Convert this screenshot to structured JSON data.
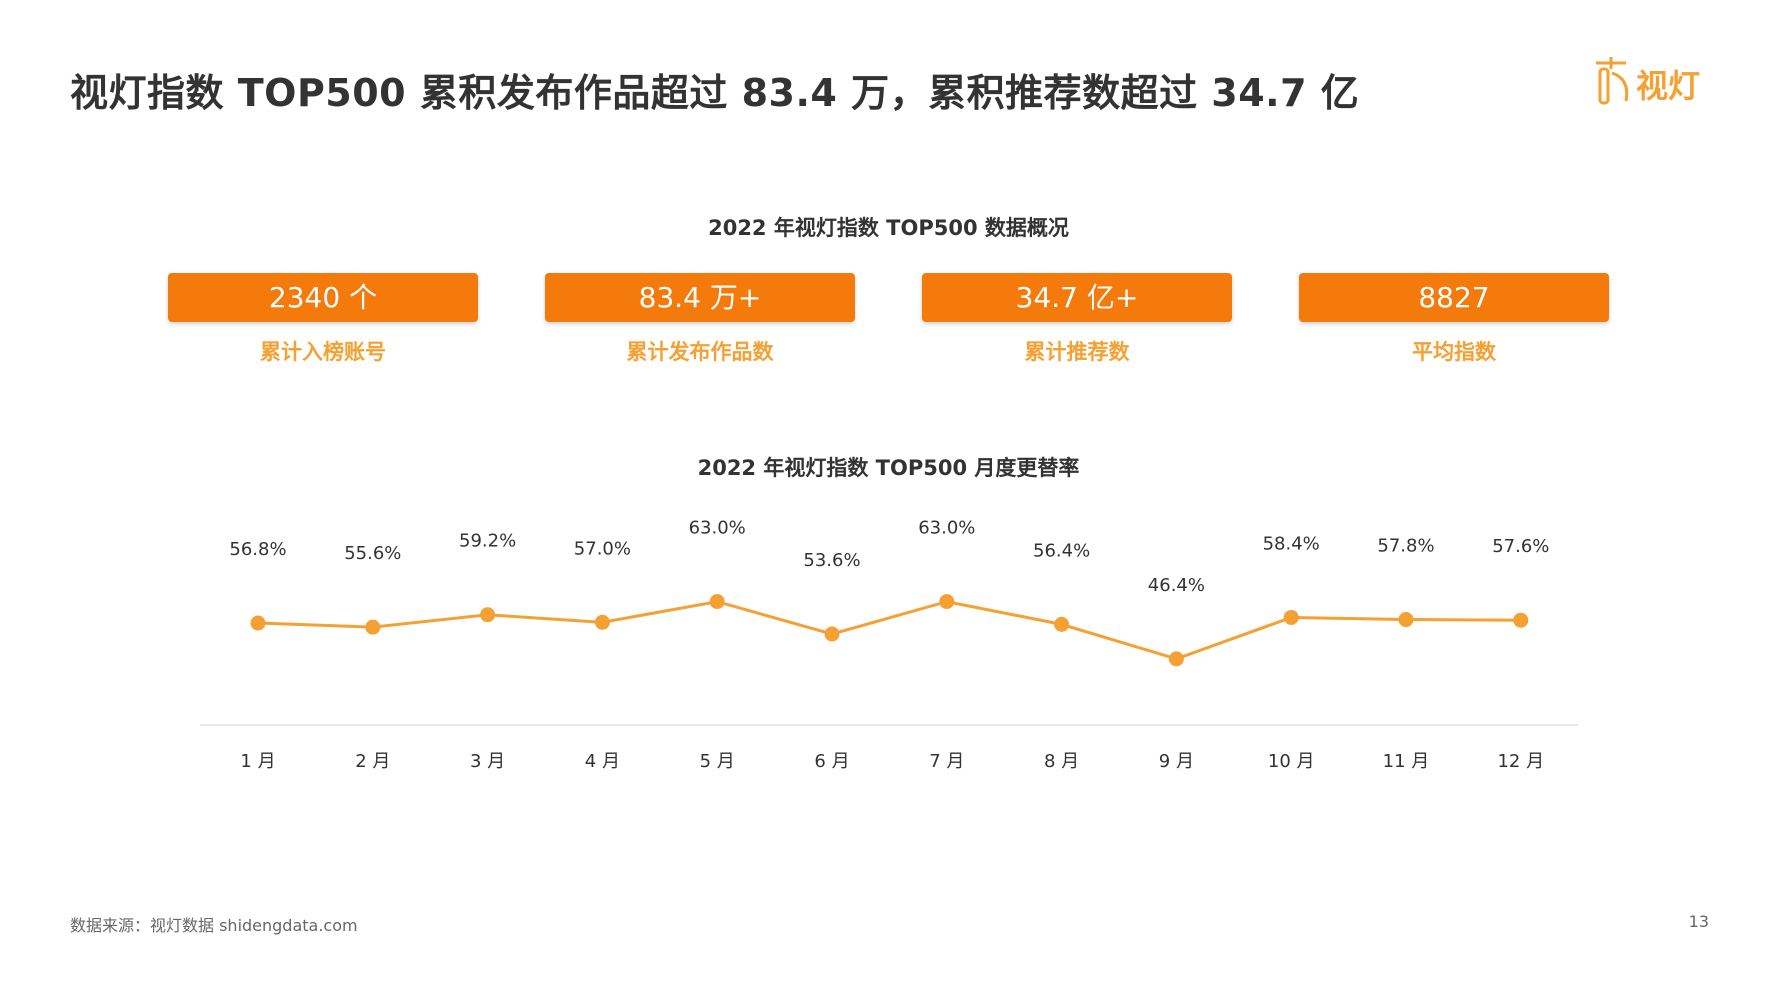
{
  "header": {
    "title": "视灯指数 TOP500 累积发布作品超过 83.4 万，累积推荐数超过 34.7 亿",
    "logo_text": "视灯"
  },
  "summary": {
    "title": "2022 年视灯指数 TOP500 数据概况",
    "cards": [
      {
        "value": "2340 个",
        "label": "累计入榜账号"
      },
      {
        "value": "83.4 万+",
        "label": "累计发布作品数"
      },
      {
        "value": "34.7 亿+",
        "label": "累计推荐数"
      },
      {
        "value": "8827",
        "label": "平均指数"
      }
    ]
  },
  "chart_data": {
    "type": "line",
    "title": "2022 年视灯指数 TOP500 月度更替率",
    "categories": [
      "1 月",
      "2 月",
      "3 月",
      "4 月",
      "5 月",
      "6 月",
      "7 月",
      "8 月",
      "9 月",
      "10 月",
      "11 月",
      "12 月"
    ],
    "series": [
      {
        "values": [
          56.8,
          55.6,
          59.2,
          57.0,
          63.0,
          53.6,
          63.0,
          56.4,
          46.4,
          58.4,
          57.8,
          57.6
        ],
        "labels": [
          "56.8%",
          "55.6%",
          "59.2%",
          "57.0%",
          "63.0%",
          "53.6%",
          "63.0%",
          "56.4%",
          "46.4%",
          "58.4%",
          "57.8%",
          "57.6%"
        ]
      }
    ],
    "color": "#F5A033",
    "grid": false,
    "legend": "none"
  },
  "footer": {
    "source": "数据来源：视灯数据 shidengdata.com",
    "page": "13"
  }
}
